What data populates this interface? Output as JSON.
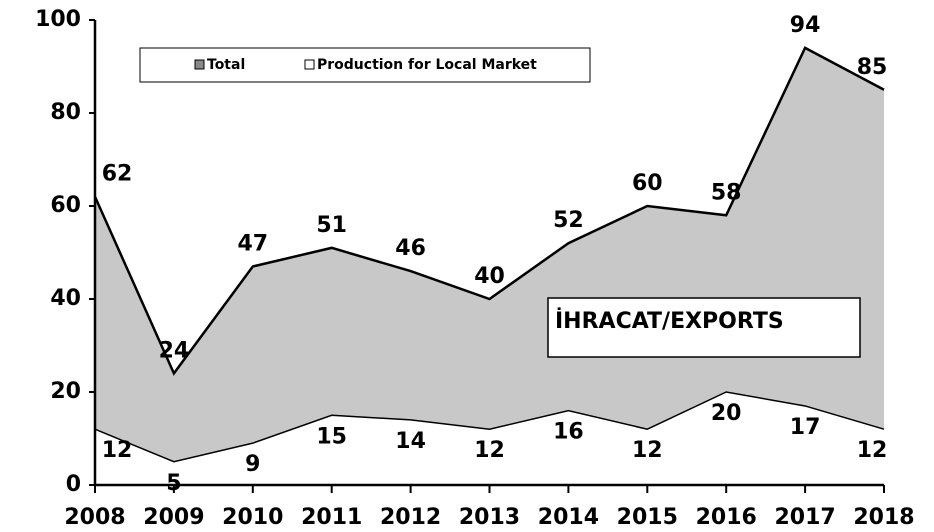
{
  "chart_data": {
    "type": "area",
    "categories": [
      "2008",
      "2009",
      "2010",
      "2011",
      "2012",
      "2013",
      "2014",
      "2015",
      "2016",
      "2017",
      "2018"
    ],
    "series": [
      {
        "name": "Total",
        "color": "#c8c8c8",
        "values": [
          62,
          24,
          47,
          51,
          46,
          40,
          52,
          60,
          58,
          94,
          85
        ]
      },
      {
        "name": "Production for Local Market",
        "color": "#ffffff",
        "values": [
          12,
          5,
          9,
          15,
          14,
          12,
          16,
          12,
          20,
          17,
          12
        ]
      }
    ],
    "annotation": "İHRACAT/EXPORTS",
    "ylim": [
      0,
      100
    ],
    "yticks": [
      0,
      20,
      40,
      60,
      80,
      100
    ]
  }
}
